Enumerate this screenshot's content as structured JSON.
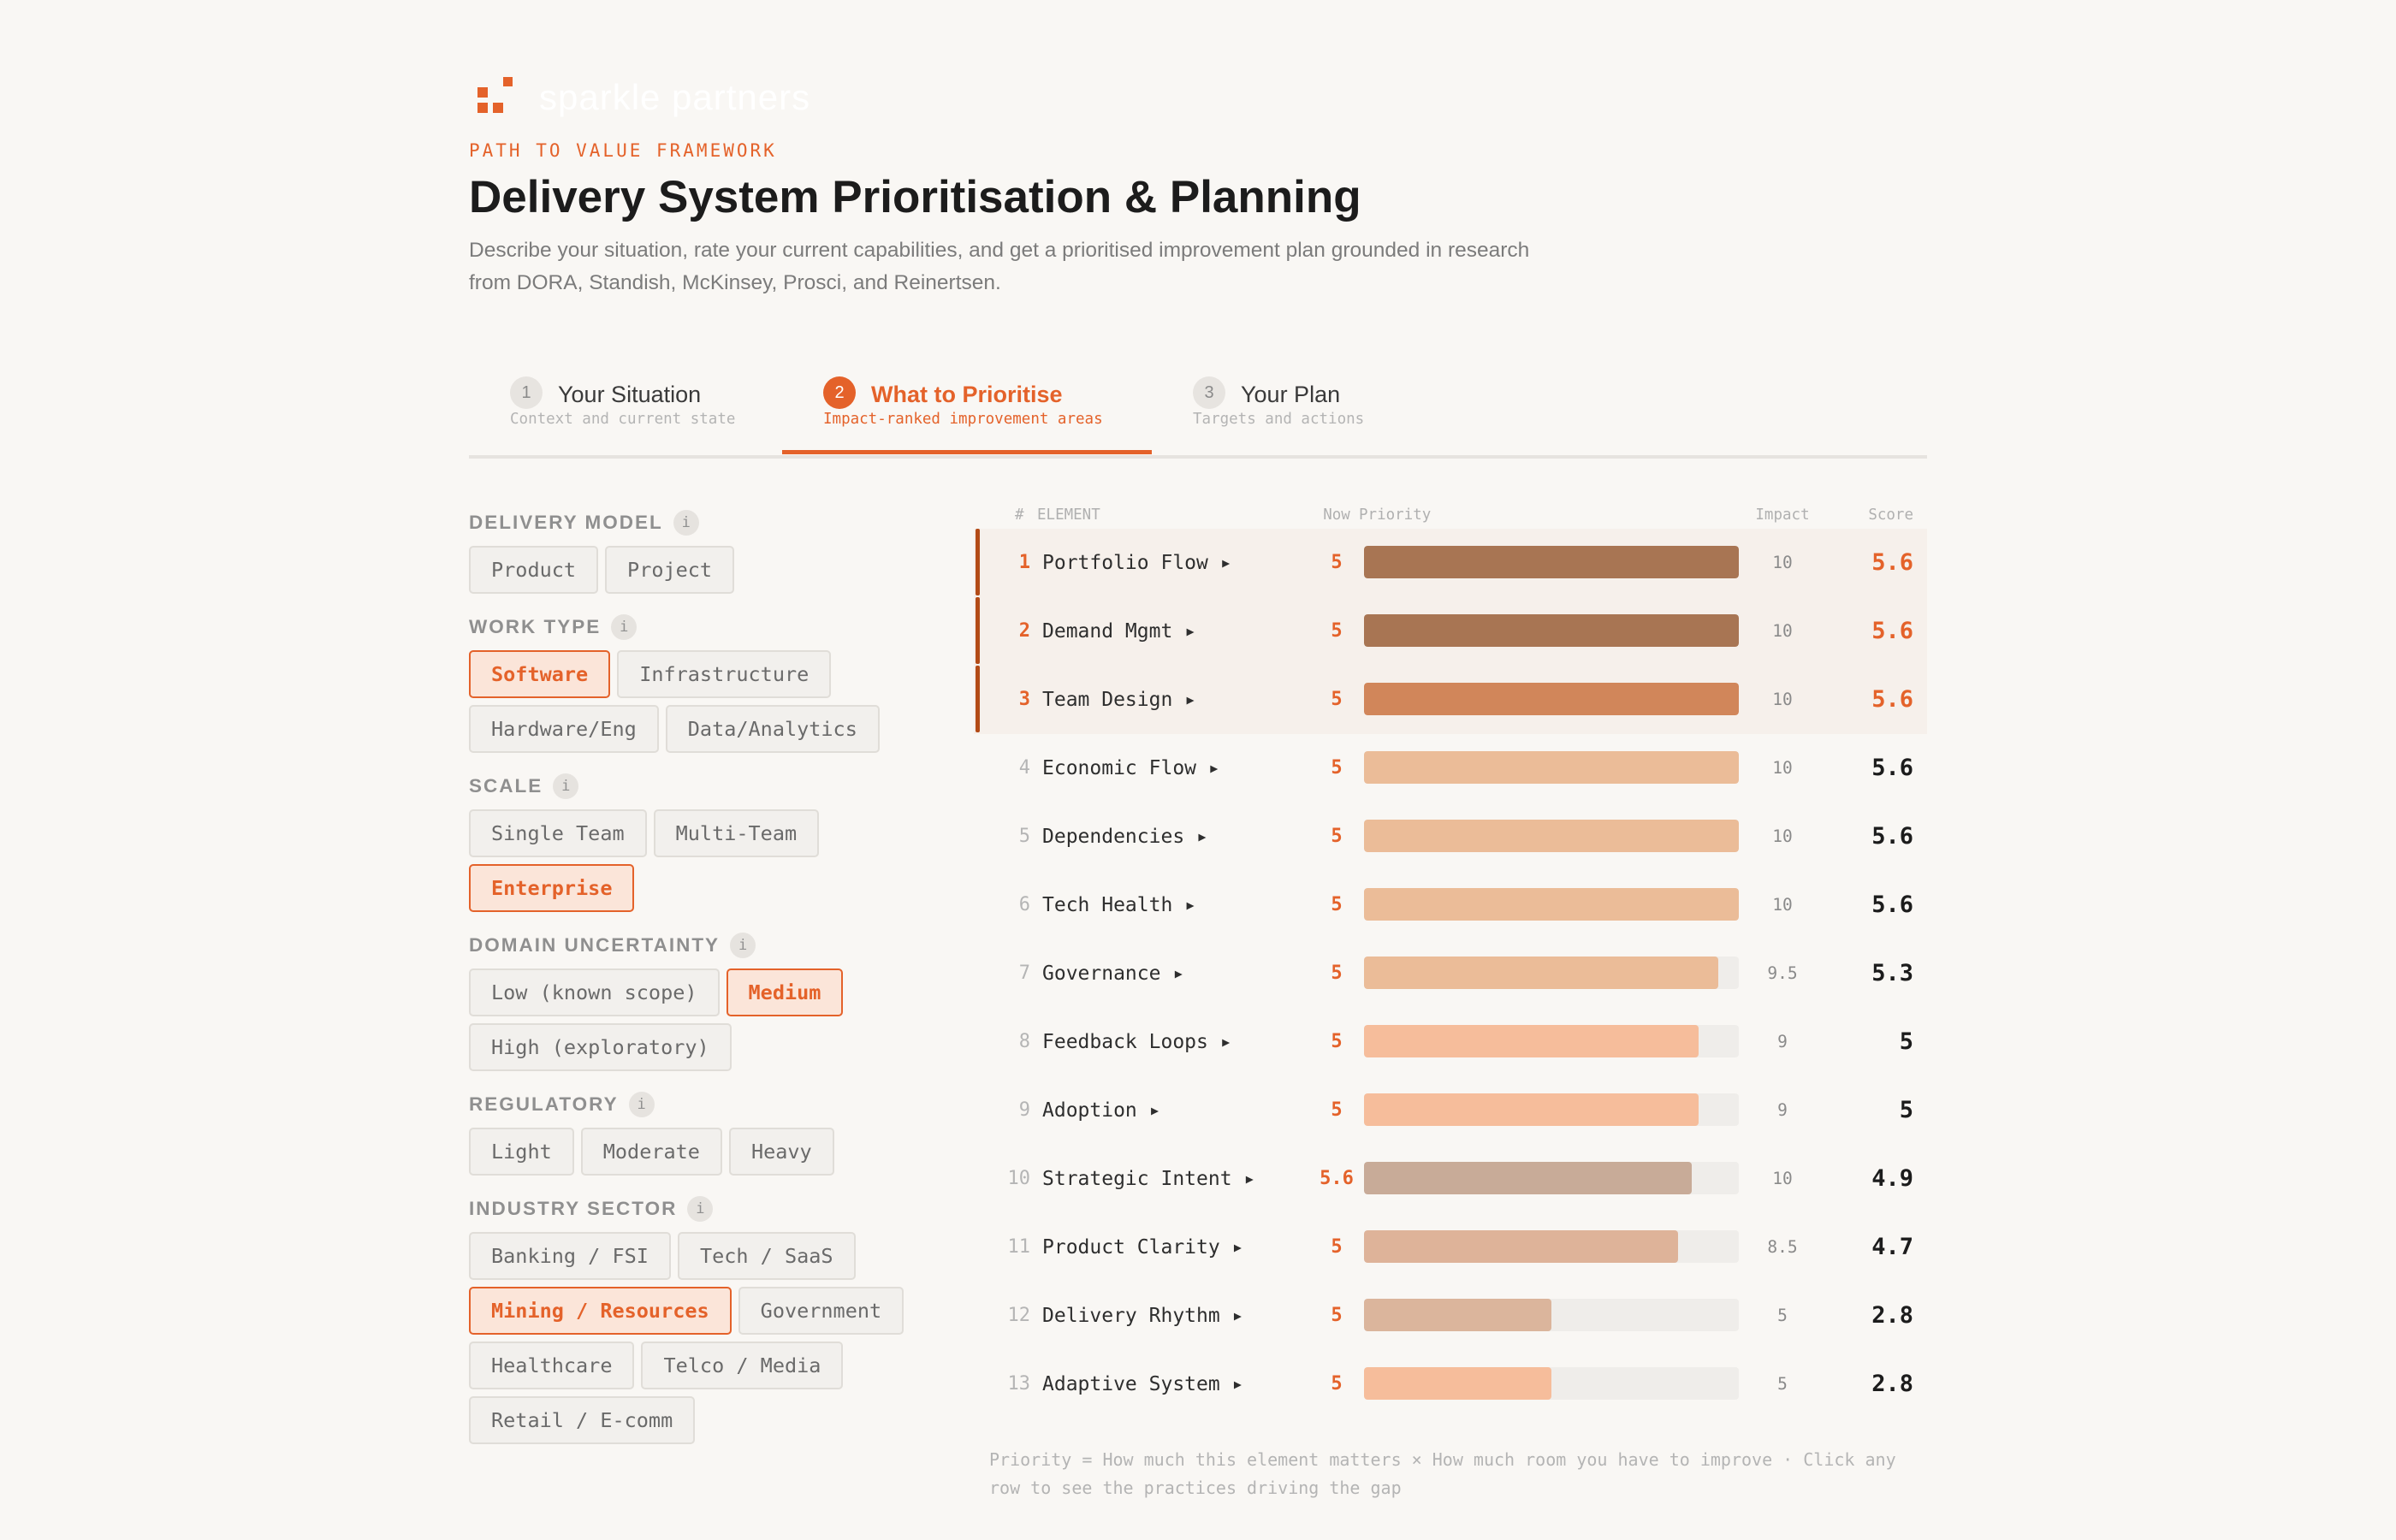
{
  "brand": {
    "wordmark": "sparkle partners",
    "accent": "#e4622a"
  },
  "header": {
    "kicker": "PATH TO VALUE FRAMEWORK",
    "title": "Delivery System Prioritisation & Planning",
    "description": "Describe your situation, rate your current capabilities, and get a prioritised improvement plan grounded in research from DORA, Standish, McKinsey, Prosci, and Reinertsen."
  },
  "steps": [
    {
      "num": "1",
      "label": "Your Situation",
      "sub": "Context and current state",
      "active": false
    },
    {
      "num": "2",
      "label": "What to Prioritise",
      "sub": "Impact-ranked improvement areas",
      "active": true
    },
    {
      "num": "3",
      "label": "Your Plan",
      "sub": "Targets and actions",
      "active": false
    }
  ],
  "filters": [
    {
      "label": "DELIVERY MODEL",
      "info": "i",
      "options": [
        {
          "label": "Product",
          "selected": false
        },
        {
          "label": "Project",
          "selected": false
        }
      ]
    },
    {
      "label": "WORK TYPE",
      "info": "i",
      "options": [
        {
          "label": "Software",
          "selected": true
        },
        {
          "label": "Infrastructure",
          "selected": false
        },
        {
          "label": "Hardware/Eng",
          "selected": false
        },
        {
          "label": "Data/Analytics",
          "selected": false
        }
      ]
    },
    {
      "label": "SCALE",
      "info": "i",
      "options": [
        {
          "label": "Single Team",
          "selected": false
        },
        {
          "label": "Multi-Team",
          "selected": false
        },
        {
          "label": "Enterprise",
          "selected": true
        }
      ]
    },
    {
      "label": "DOMAIN UNCERTAINTY",
      "info": "i",
      "options": [
        {
          "label": "Low (known scope)",
          "selected": false
        },
        {
          "label": "Medium",
          "selected": true
        },
        {
          "label": "High (exploratory)",
          "selected": false
        }
      ]
    },
    {
      "label": "REGULATORY",
      "info": "i",
      "options": [
        {
          "label": "Light",
          "selected": false
        },
        {
          "label": "Moderate",
          "selected": false
        },
        {
          "label": "Heavy",
          "selected": false
        }
      ]
    },
    {
      "label": "INDUSTRY SECTOR",
      "info": "i",
      "options": [
        {
          "label": "Banking / FSI",
          "selected": false
        },
        {
          "label": "Tech / SaaS",
          "selected": false
        },
        {
          "label": "Mining / Resources",
          "selected": true
        },
        {
          "label": "Government",
          "selected": false
        },
        {
          "label": "Healthcare",
          "selected": false
        },
        {
          "label": "Telco / Media",
          "selected": false
        },
        {
          "label": "Retail / E-comm",
          "selected": false
        }
      ]
    }
  ],
  "table": {
    "headers": {
      "rank": "#",
      "element": "ELEMENT",
      "now": "Now",
      "priority": "Priority",
      "impact": "Impact",
      "score": "Score"
    },
    "priority_max": 1,
    "rows": [
      {
        "rank": "1",
        "name": "Portfolio Flow ▸",
        "now": "5",
        "priority": 1.0,
        "color": "#a87553",
        "impact": "10",
        "score": "5.6",
        "top": true
      },
      {
        "rank": "2",
        "name": "Demand Mgmt ▸",
        "now": "5",
        "priority": 1.0,
        "color": "#a87553",
        "impact": "10",
        "score": "5.6",
        "top": true
      },
      {
        "rank": "3",
        "name": "Team Design ▸",
        "now": "5",
        "priority": 1.0,
        "color": "#d1865a",
        "impact": "10",
        "score": "5.6",
        "top": true
      },
      {
        "rank": "4",
        "name": "Economic Flow ▸",
        "now": "5",
        "priority": 1.0,
        "color": "#ebbc98",
        "impact": "10",
        "score": "5.6",
        "top": false
      },
      {
        "rank": "5",
        "name": "Dependencies ▸",
        "now": "5",
        "priority": 1.0,
        "color": "#ebbc98",
        "impact": "10",
        "score": "5.6",
        "top": false
      },
      {
        "rank": "6",
        "name": "Tech Health ▸",
        "now": "5",
        "priority": 1.0,
        "color": "#ebbc98",
        "impact": "10",
        "score": "5.6",
        "top": false
      },
      {
        "rank": "7",
        "name": "Governance ▸",
        "now": "5",
        "priority": 0.945,
        "color": "#ebbc98",
        "impact": "9.5",
        "score": "5.3",
        "top": false
      },
      {
        "rank": "8",
        "name": "Feedback Loops ▸",
        "now": "5",
        "priority": 0.893,
        "color": "#f6bd9b",
        "impact": "9",
        "score": "5",
        "top": false
      },
      {
        "rank": "9",
        "name": "Adoption ▸",
        "now": "5",
        "priority": 0.893,
        "color": "#f6bd9b",
        "impact": "9",
        "score": "5",
        "top": false
      },
      {
        "rank": "10",
        "name": "Strategic Intent ▸",
        "now": "5.6",
        "priority": 0.875,
        "color": "#c8ab98",
        "impact": "10",
        "score": "4.9",
        "top": false
      },
      {
        "rank": "11",
        "name": "Product Clarity ▸",
        "now": "5",
        "priority": 0.839,
        "color": "#deb399",
        "impact": "8.5",
        "score": "4.7",
        "top": false
      },
      {
        "rank": "12",
        "name": "Delivery Rhythm ▸",
        "now": "5",
        "priority": 0.5,
        "color": "#dbb59c",
        "impact": "5",
        "score": "2.8",
        "top": false
      },
      {
        "rank": "13",
        "name": "Adaptive System ▸",
        "now": "5",
        "priority": 0.5,
        "color": "#f6bd9b",
        "impact": "5",
        "score": "2.8",
        "top": false
      }
    ]
  },
  "footnote": "Priority = How much this element matters × How much room you have to improve · Click any row to see the practices driving the gap"
}
